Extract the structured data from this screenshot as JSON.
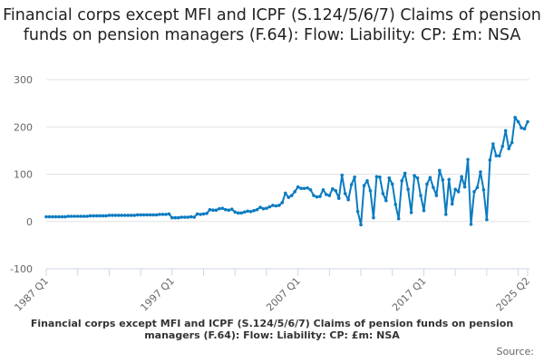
{
  "chart_data": {
    "type": "line",
    "title": "Financial corps except MFI and ICPF (S.124/5/6/7) Claims of pension funds on pension managers (F.64): Flow: Liability: CP: £m: NSA",
    "xlabel": "",
    "ylabel": "",
    "ylim": [
      -100,
      300
    ],
    "yticks": [
      -100,
      0,
      100,
      200,
      300
    ],
    "x_start": "1987 Q1",
    "x_end": "2025 Q2",
    "frequency": "quarterly",
    "xtick_labels": [
      "1987 Q1",
      "1997 Q1",
      "2007 Q1",
      "2017 Q1",
      "2025 Q2"
    ],
    "xtick_indices": [
      0,
      40,
      80,
      120,
      153
    ],
    "grid": true,
    "series": [
      {
        "name": "Financial corps except MFI and ICPF (S.124/5/6/7) Claims of pension funds on pension managers (F.64): Flow: Liability: CP: £m: NSA",
        "color": "#0b7bc1",
        "values": [
          10,
          10,
          10,
          10,
          10,
          10,
          10,
          11,
          11,
          11,
          11,
          11,
          11,
          11,
          12,
          12,
          12,
          12,
          12,
          12,
          13,
          13,
          13,
          13,
          13,
          13,
          13,
          13,
          13,
          14,
          14,
          14,
          14,
          14,
          14,
          14,
          15,
          15,
          15,
          16,
          8,
          8,
          8,
          9,
          9,
          9,
          10,
          9,
          16,
          15,
          16,
          17,
          25,
          24,
          24,
          27,
          28,
          25,
          24,
          26,
          20,
          18,
          18,
          20,
          22,
          21,
          23,
          25,
          30,
          27,
          28,
          31,
          34,
          33,
          34,
          40,
          60,
          51,
          55,
          63,
          73,
          70,
          70,
          71,
          67,
          55,
          52,
          53,
          67,
          57,
          55,
          69,
          65,
          49,
          98,
          59,
          46,
          78,
          94,
          21,
          -7,
          76,
          86,
          65,
          8,
          95,
          94,
          59,
          44,
          92,
          79,
          36,
          6,
          86,
          102,
          68,
          19,
          97,
          92,
          55,
          23,
          79,
          93,
          72,
          55,
          108,
          88,
          15,
          89,
          37,
          68,
          63,
          95,
          73,
          131,
          -6,
          63,
          72,
          105,
          67,
          4,
          130,
          164,
          139,
          139,
          159,
          192,
          154,
          167,
          220,
          211,
          198,
          196,
          211
        ]
      }
    ],
    "legend": "bottom",
    "source_label": "Source:"
  }
}
